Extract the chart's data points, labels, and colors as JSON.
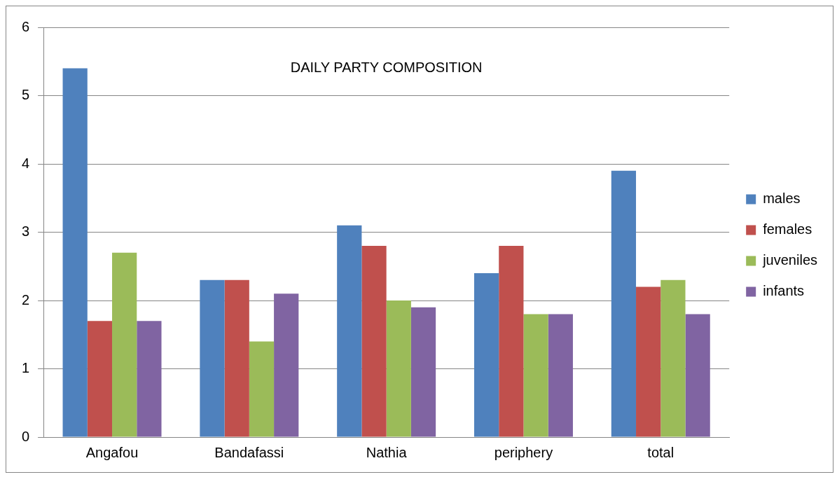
{
  "chart_data": {
    "type": "bar",
    "title": "DAILY PARTY COMPOSITION",
    "categories": [
      "Angafou",
      "Bandafassi",
      "Nathia",
      "periphery",
      "total"
    ],
    "series": [
      {
        "name": "males",
        "color": "#4f81bd",
        "values": [
          5.4,
          2.3,
          3.1,
          2.4,
          3.9
        ]
      },
      {
        "name": "females",
        "color": "#c0504d",
        "values": [
          1.7,
          2.3,
          2.8,
          2.8,
          2.2
        ]
      },
      {
        "name": "juveniles",
        "color": "#9bbb59",
        "values": [
          2.7,
          1.4,
          2.0,
          1.8,
          2.3
        ]
      },
      {
        "name": "infants",
        "color": "#8064a2",
        "values": [
          1.7,
          2.1,
          1.9,
          1.8,
          1.8
        ]
      }
    ],
    "ylim": [
      0,
      6
    ],
    "yticks": [
      0,
      1,
      2,
      3,
      4,
      5,
      6
    ],
    "grid": "y",
    "legend": "right"
  }
}
